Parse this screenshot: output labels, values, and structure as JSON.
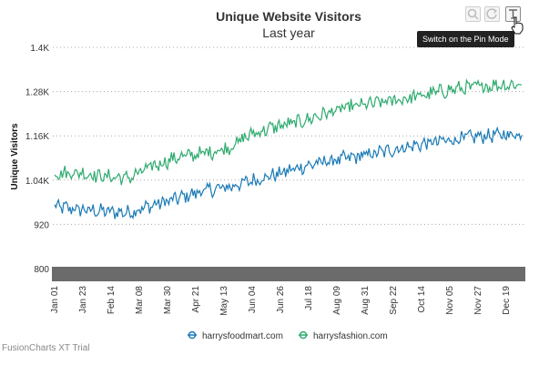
{
  "chart_data": {
    "type": "line",
    "title": "Unique Website Visitors",
    "subtitle": "Last year",
    "ylabel": "Unique Visitors",
    "xlabel": "",
    "ylim": [
      800,
      1400
    ],
    "y_ticks": [
      "1.4K",
      "1.28K",
      "1.16K",
      "1.04K",
      "920",
      "800"
    ],
    "y_tick_values": [
      1400,
      1280,
      1160,
      1040,
      920,
      800
    ],
    "x_ticks": [
      "Jan 01",
      "Jan 23",
      "Feb 14",
      "Mar 08",
      "Mar 30",
      "Apr 21",
      "May 13",
      "Jun 04",
      "Jun 26",
      "Jul 18",
      "Aug 09",
      "Aug 31",
      "Sep 22",
      "Oct 14",
      "Nov 05",
      "Nov 27",
      "Dec 19"
    ],
    "days": 365,
    "tick_interval_days": 22,
    "grid": true,
    "legend_position": "bottom",
    "series": [
      {
        "name": "harrysfoodmart.com",
        "color": "#1a7ab5",
        "values": [
          968,
          960,
          955,
          952,
          972,
          990,
          1010,
          1020,
          1038,
          1055,
          1075,
          1090,
          1100,
          1112,
          1126,
          1138,
          1148,
          1157,
          1162,
          1165
        ]
      },
      {
        "name": "harrysfashion.com",
        "color": "#2eaa6e",
        "values": [
          1058,
          1060,
          1050,
          1045,
          1078,
          1102,
          1112,
          1125,
          1165,
          1185,
          1198,
          1220,
          1238,
          1248,
          1258,
          1270,
          1284,
          1292,
          1298,
          1300
        ]
      }
    ]
  },
  "tooltip": "Switch on the Pin Mode",
  "trial_text": "FusionCharts XT Trial",
  "toolbar": {
    "zoom_icon": "zoom-out-icon",
    "reset_icon": "reset-icon",
    "pin_icon": "pin-icon"
  }
}
